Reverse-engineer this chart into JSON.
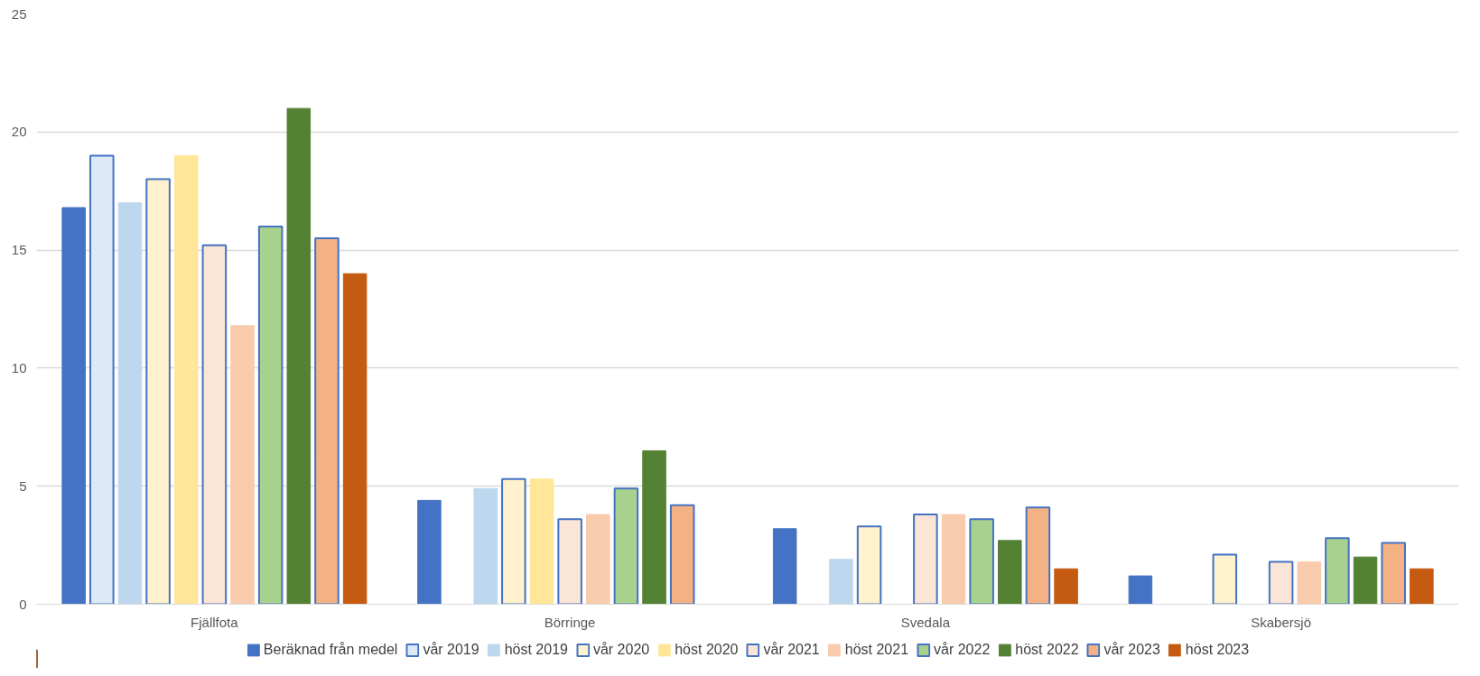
{
  "chart_data": {
    "type": "bar",
    "categories": [
      "Fjällfota",
      "Börringe",
      "Svedala",
      "Skabersjö"
    ],
    "ylim": [
      0,
      25
    ],
    "yticks": [
      0,
      5,
      10,
      15,
      20,
      25
    ],
    "grid": "y",
    "legend": "bottom",
    "series": [
      {
        "name": "Beräknad från medel",
        "color": "#4472c4",
        "values": [
          16.8,
          4.4,
          3.2,
          1.2
        ]
      },
      {
        "name": "vår 2019",
        "color": "#dde9f6",
        "values": [
          19,
          null,
          null,
          null
        ]
      },
      {
        "name": "höst 2019",
        "color": "#bdd7ee",
        "values": [
          17,
          4.9,
          1.9,
          null
        ]
      },
      {
        "name": "vår 2020",
        "color": "#fff2cc",
        "values": [
          18,
          5.3,
          3.3,
          2.1
        ]
      },
      {
        "name": "höst 2020",
        "color": "#ffe699",
        "values": [
          19,
          5.3,
          null,
          null
        ]
      },
      {
        "name": "vår 2021",
        "color": "#fbe5d6",
        "values": [
          15.2,
          3.6,
          3.8,
          1.8
        ]
      },
      {
        "name": "höst 2021",
        "color": "#f8cbad",
        "values": [
          11.8,
          3.8,
          3.8,
          1.8
        ]
      },
      {
        "name": "vår 2022",
        "color": "#a9d18e",
        "values": [
          16,
          4.9,
          3.6,
          2.8
        ]
      },
      {
        "name": "höst 2022",
        "color": "#548235",
        "values": [
          21,
          6.5,
          2.7,
          2.0
        ]
      },
      {
        "name": "vår 2023",
        "color": "#f4b183",
        "values": [
          15.5,
          4.2,
          4.1,
          2.6
        ]
      },
      {
        "name": "höst 2023",
        "color": "#c55a11",
        "values": [
          14,
          null,
          1.5,
          1.5
        ]
      }
    ]
  }
}
